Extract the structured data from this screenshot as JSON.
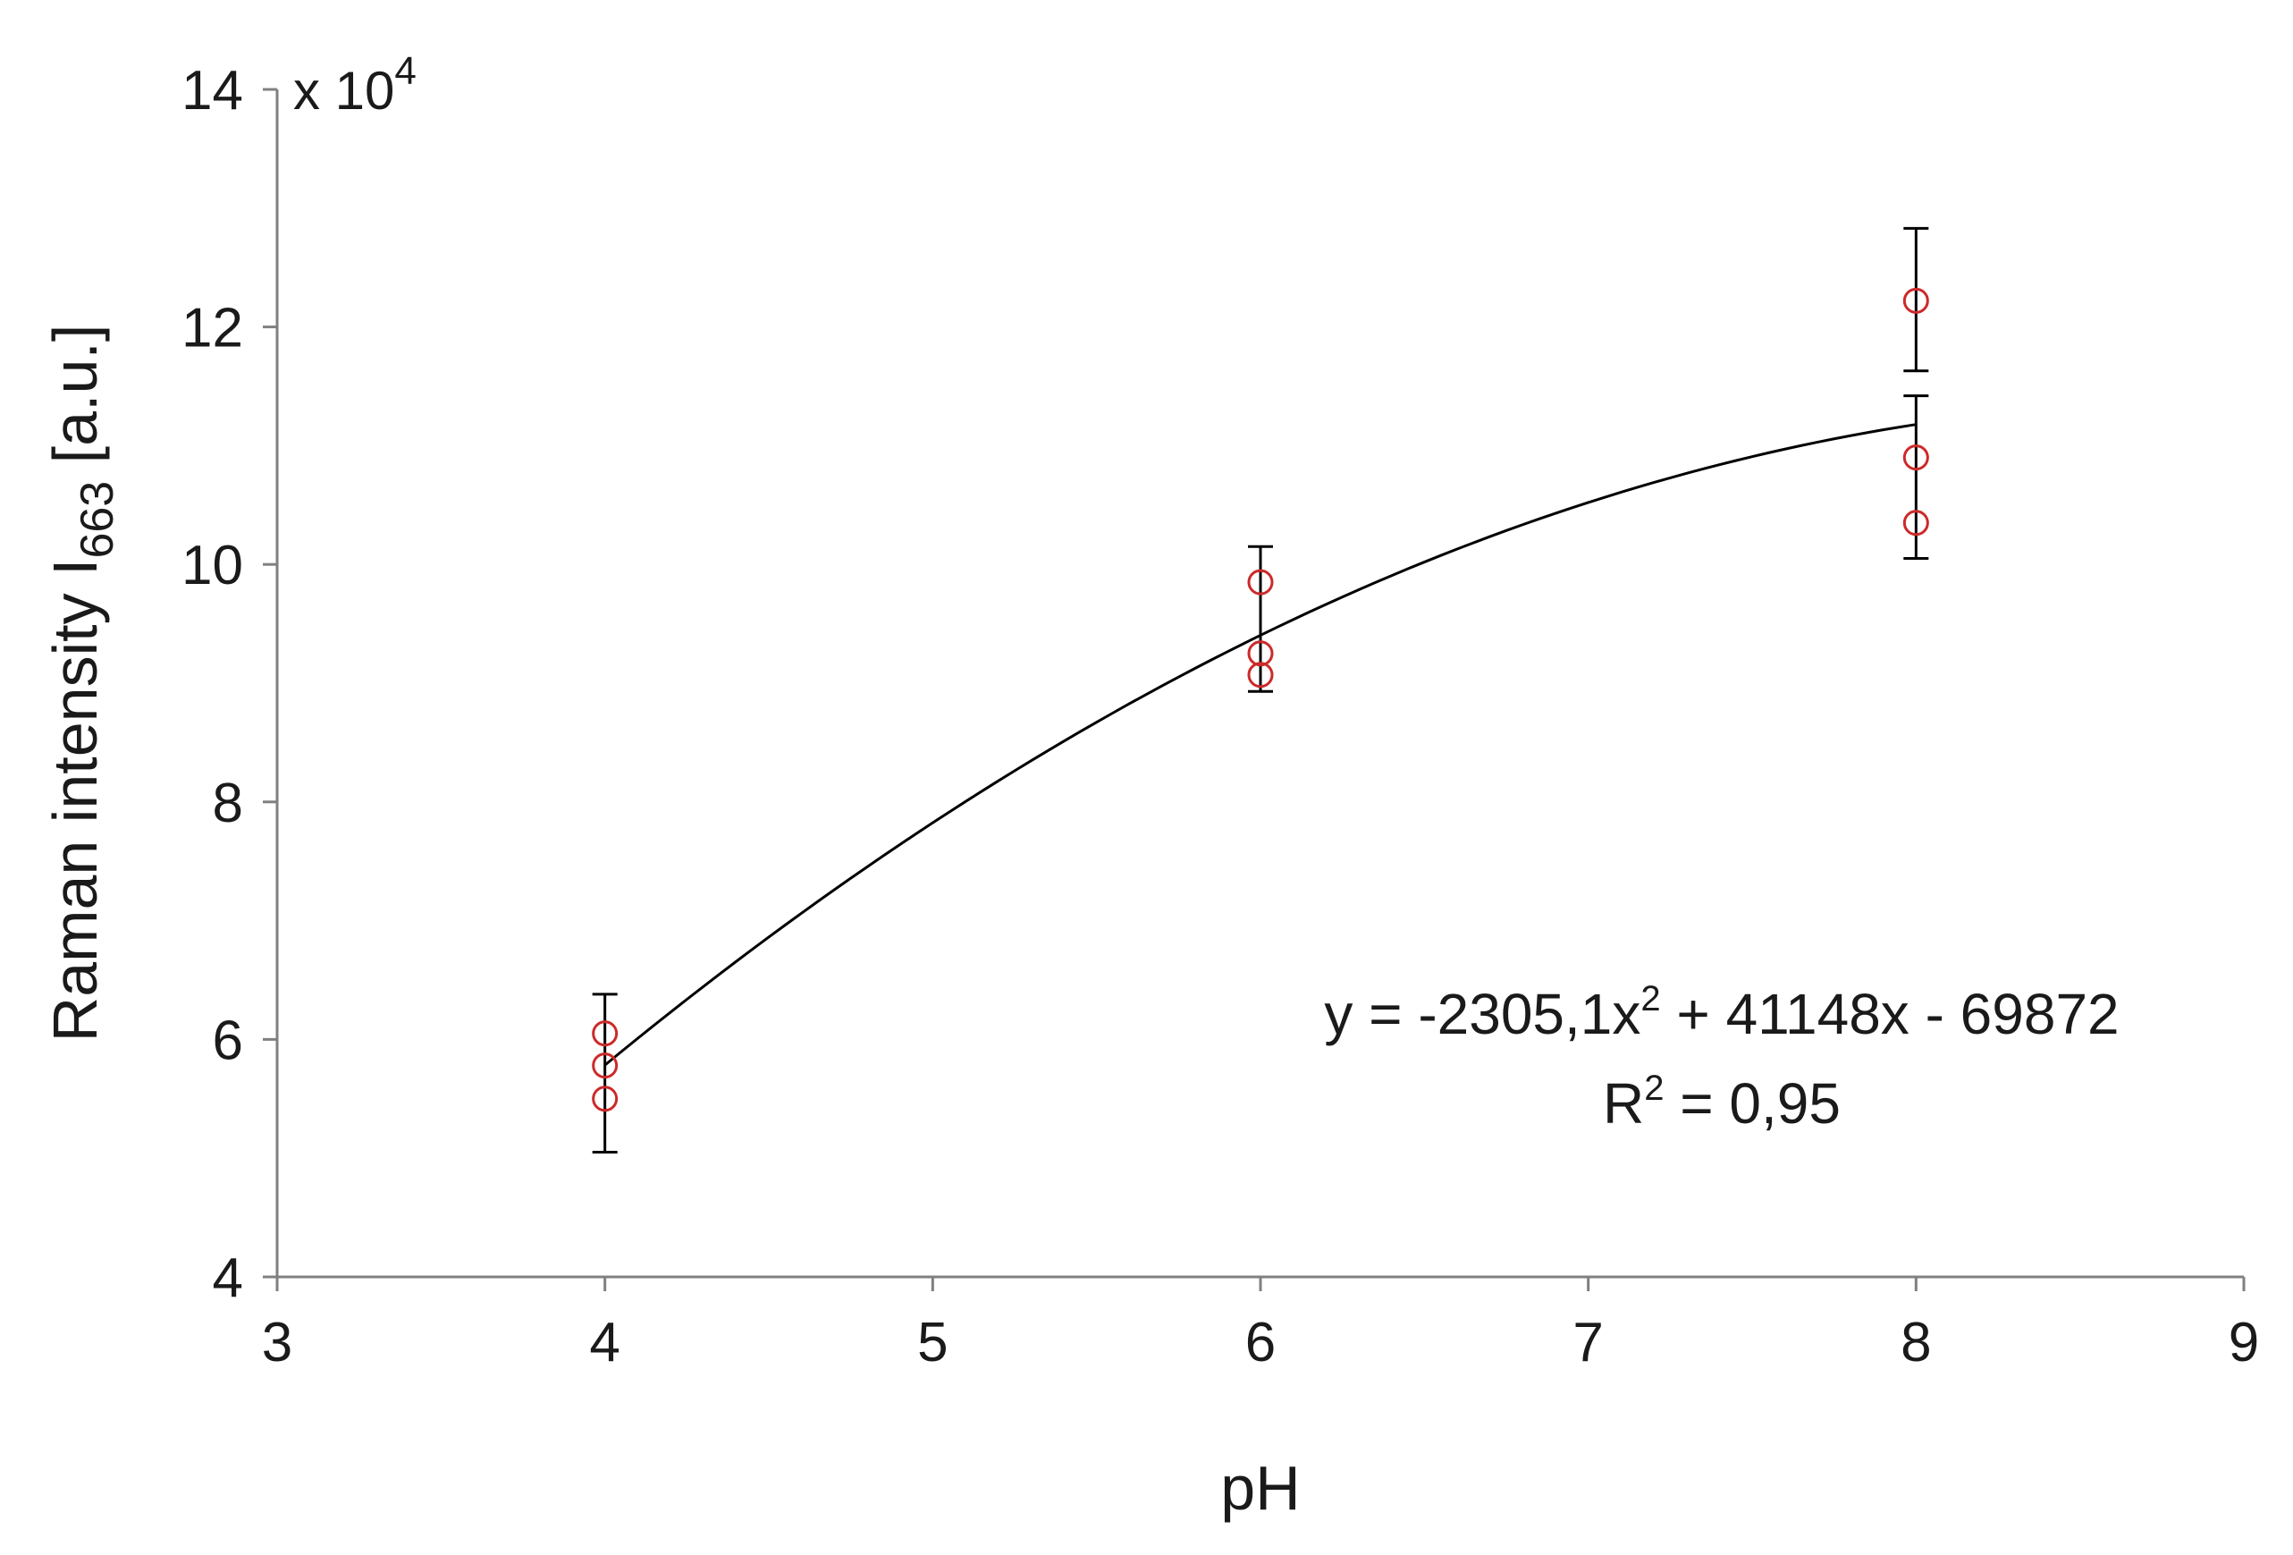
{
  "chart_data": {
    "type": "scatter",
    "xlabel": "pH",
    "ylabel_main": "Raman intensity I",
    "ylabel_sub": "663",
    "ylabel_unit": " [a.u.]",
    "y_multiplier_base": "x 10",
    "y_multiplier_exp": "4",
    "xlim": [
      3,
      9
    ],
    "ylim": [
      4,
      14
    ],
    "x_ticks": [
      3,
      4,
      5,
      6,
      7,
      8,
      9
    ],
    "y_ticks": [
      4,
      6,
      8,
      10,
      12,
      14
    ],
    "grid": false,
    "points": [
      {
        "x": 4,
        "y": 6.05
      },
      {
        "x": 4,
        "y": 5.78
      },
      {
        "x": 4,
        "y": 5.5
      },
      {
        "x": 6,
        "y": 9.85
      },
      {
        "x": 6,
        "y": 9.25
      },
      {
        "x": 6,
        "y": 9.07
      },
      {
        "x": 8,
        "y": 12.22
      },
      {
        "x": 8,
        "y": 10.9
      },
      {
        "x": 8,
        "y": 10.35
      }
    ],
    "error_bars": [
      {
        "x": 4,
        "low": 5.05,
        "high": 6.38
      },
      {
        "x": 6,
        "low": 8.93,
        "high": 10.15
      },
      {
        "x": 8,
        "low": 10.05,
        "high": 11.42
      },
      {
        "x": 8,
        "low": 11.63,
        "high": 12.83
      }
    ],
    "fit": {
      "a": -0.23051,
      "b": 4.1148,
      "c": -6.9872,
      "x_range": [
        4,
        8
      ]
    },
    "equation_text": {
      "prefix": "y = -2305,1x",
      "sup": "2",
      "suffix": " + 41148x - 69872"
    },
    "r2_text": {
      "prefix": "R",
      "sup": "2",
      "suffix": " = 0,95"
    },
    "colors": {
      "marker": "#cc2a2a",
      "line": "#000000",
      "axis": "#808080"
    }
  }
}
